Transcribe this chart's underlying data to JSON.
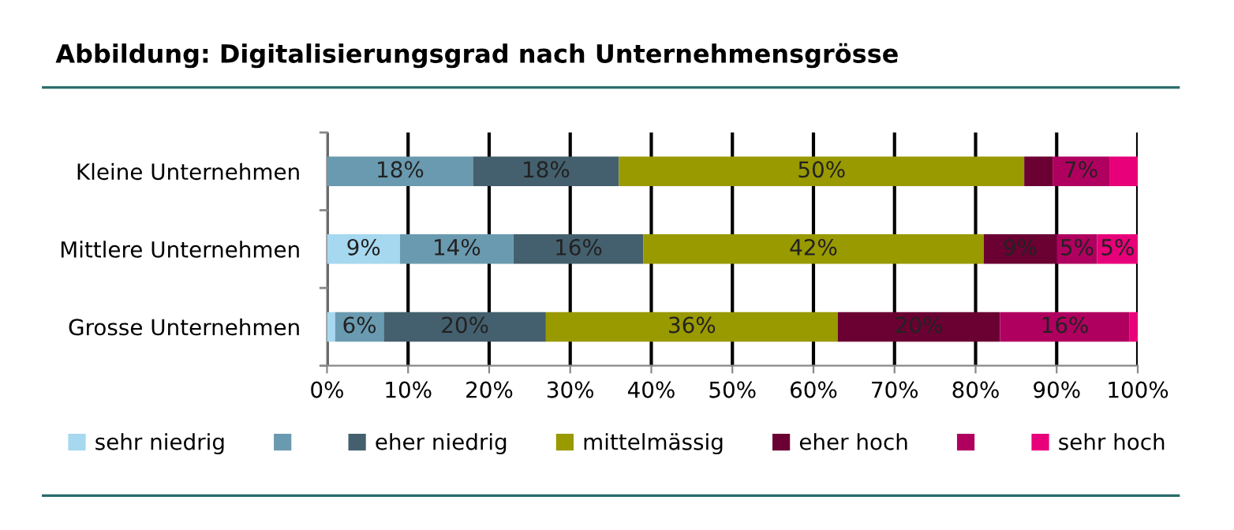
{
  "chart_data": {
    "type": "bar",
    "orientation": "horizontal",
    "stacked": true,
    "title": "Abbildung: Digitalisierungsgrad nach Unternehmensgrösse",
    "categories": [
      "Kleine Unternehmen",
      "Mittlere Unternehmen",
      "Grosse Unternehmen"
    ],
    "series": [
      {
        "name": "sehr niedrig",
        "color": "#a6d8f0",
        "values": [
          0,
          9,
          1
        ],
        "value_labels": [
          null,
          "9%",
          null
        ]
      },
      {
        "color": "#6a9ab0",
        "values": [
          18,
          14,
          6
        ],
        "value_labels": [
          "18%",
          "14%",
          "6%"
        ]
      },
      {
        "name": "eher niedrig",
        "color": "#44606e",
        "values": [
          18,
          16,
          20
        ],
        "value_labels": [
          "18%",
          "16%",
          "20%"
        ]
      },
      {
        "name": "mittelmässig",
        "color": "#999900",
        "values": [
          50,
          42,
          36
        ],
        "value_labels": [
          "50%",
          "42%",
          "36%"
        ]
      },
      {
        "name": "eher hoch",
        "color": "#6b0033",
        "values": [
          3.5,
          9,
          20
        ],
        "value_labels": [
          null,
          "9%",
          "20%"
        ]
      },
      {
        "color": "#b0005f",
        "values": [
          7,
          5,
          16
        ],
        "value_labels": [
          "7%",
          "5%",
          "16%"
        ]
      },
      {
        "name": "sehr hoch",
        "color": "#e8007a",
        "values": [
          3.5,
          5,
          1
        ],
        "value_labels": [
          null,
          "5%",
          null
        ]
      }
    ],
    "xlim": [
      0,
      100
    ],
    "xticks": [
      {
        "value": 0,
        "label": "0%"
      },
      {
        "value": 10,
        "label": "10%"
      },
      {
        "value": 20,
        "label": "20%"
      },
      {
        "value": 30,
        "label": "30%"
      },
      {
        "value": 40,
        "label": "40%"
      },
      {
        "value": 50,
        "label": "50%"
      },
      {
        "value": 60,
        "label": "60%"
      },
      {
        "value": 70,
        "label": "70%"
      },
      {
        "value": 80,
        "label": "80%"
      },
      {
        "value": 90,
        "label": "90%"
      },
      {
        "value": 100,
        "label": "100%"
      }
    ],
    "grid": "x",
    "legend": "bottom"
  }
}
